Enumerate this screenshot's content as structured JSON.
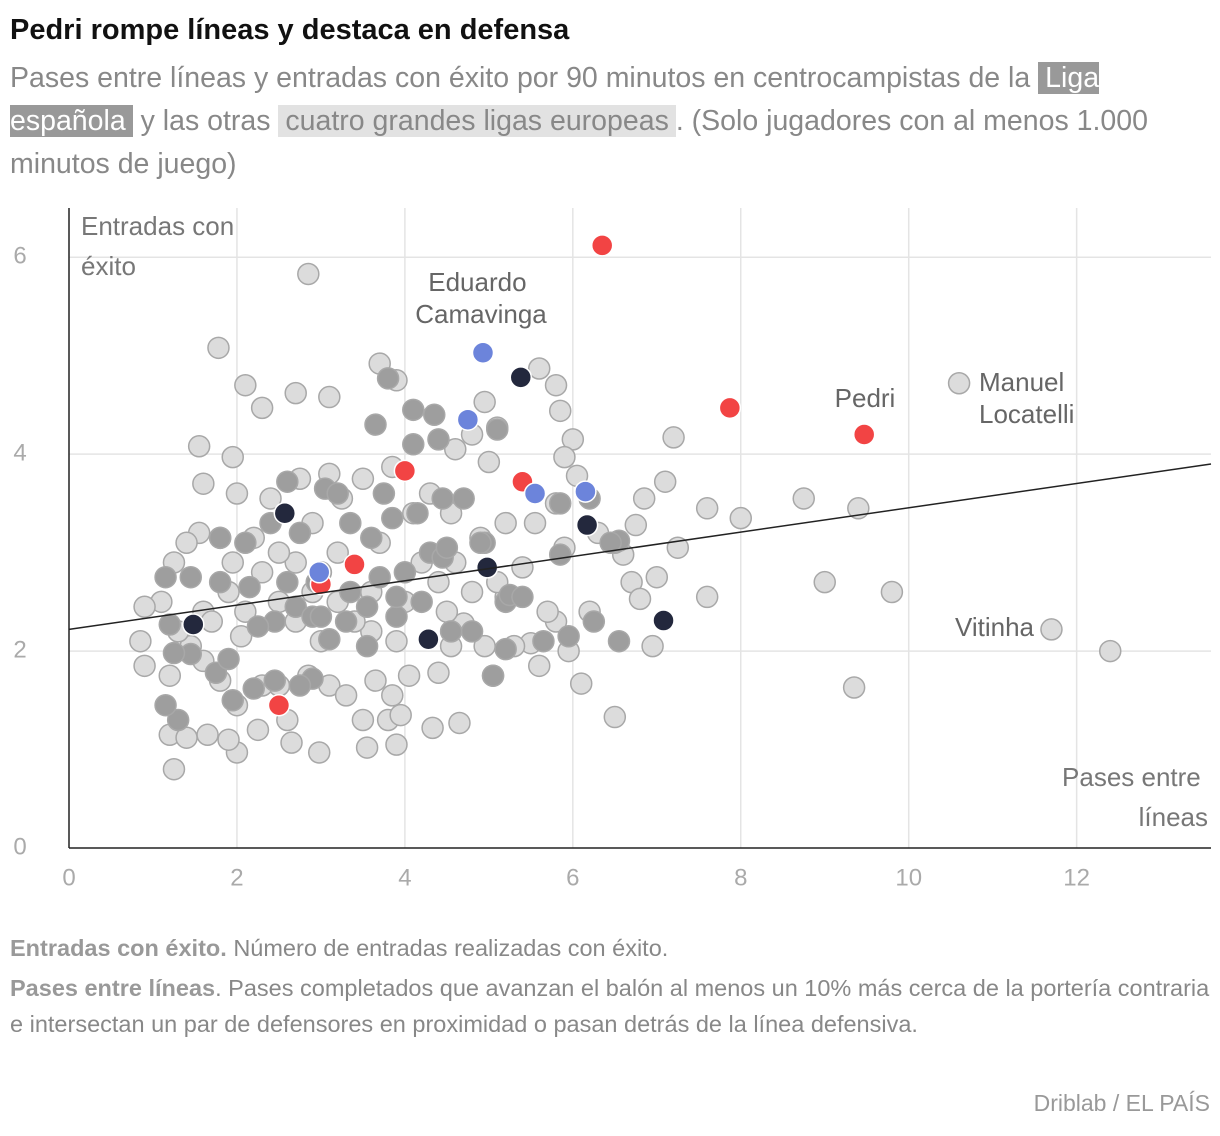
{
  "chart_data": {
    "type": "scatter",
    "title": "Pedri rompe líneas y destaca en defensa",
    "subtitle": [
      "Pases entre líneas y entradas con éxito por 90 minutos en centrocampistas de la ",
      " y las otras ",
      ". (Solo jugadores con al menos 1.000 minutos de juego)"
    ],
    "y_label": "Entradas con éxito",
    "x_label": "Pases entre líneas",
    "xlim": [
      0,
      13.6
    ],
    "ylim": [
      0,
      6.5
    ],
    "xticks": [
      0,
      2,
      4,
      6,
      8,
      10,
      12
    ],
    "yticks": [
      0,
      2,
      4,
      6
    ],
    "grid": true,
    "trend_line": {
      "x": [
        0,
        13.6
      ],
      "y": [
        2.22,
        3.9
      ],
      "color": "#222222"
    },
    "series": [
      {
        "name": "cuatro grandes ligas europeas",
        "color": "#dcdcdc",
        "x": [
          2.85,
          1.78,
          10.6,
          11.7,
          12.4,
          9.35,
          9.8,
          9.0,
          8.75,
          9.4,
          8.0,
          7.6,
          7.25,
          7.2,
          7.6,
          6.5,
          6.1,
          4.65,
          4.33,
          3.9,
          3.55,
          2.98,
          1.25,
          2.0,
          2.65,
          3.7,
          3.9,
          5.8,
          5.6,
          5.85,
          5.1,
          6.0,
          2.7,
          3.1,
          2.1,
          2.3,
          1.55,
          1.6,
          1.95,
          4.6,
          4.95,
          4.8,
          5.0,
          5.9,
          6.05,
          6.3,
          6.75,
          6.85,
          7.1,
          6.7,
          6.8,
          7.0,
          6.6,
          6.5,
          6.95,
          6.2,
          5.8,
          5.7,
          5.6,
          5.95,
          5.5,
          5.2,
          5.1,
          5.4,
          5.2,
          5.55,
          5.8,
          5.9,
          4.9,
          4.55,
          4.3,
          4.1,
          3.85,
          3.5,
          3.25,
          3.1,
          2.9,
          2.75,
          2.4,
          2.2,
          2.0,
          1.8,
          1.55,
          1.4,
          1.25,
          1.1,
          0.9,
          0.85,
          0.9,
          1.2,
          1.2,
          1.4,
          1.65,
          1.9,
          2.0,
          1.8,
          1.6,
          1.45,
          2.25,
          2.6,
          2.85,
          3.1,
          3.3,
          3.5,
          3.8,
          3.95,
          3.85,
          4.05,
          4.4,
          4.55,
          4.7,
          4.95,
          5.05,
          3.65,
          2.5,
          2.3,
          2.05,
          2.5,
          3.2,
          3.6,
          4.0,
          4.4,
          4.6,
          4.2,
          3.7,
          3.2,
          2.7,
          2.3,
          1.9,
          1.6,
          1.3,
          1.7,
          2.1,
          2.7,
          3.0,
          3.6,
          3.9,
          4.5,
          4.8,
          5.3,
          3.4,
          2.9,
          1.95,
          2.5
        ],
        "y": [
          5.83,
          5.08,
          4.72,
          2.22,
          2.0,
          1.63,
          2.6,
          2.7,
          3.55,
          3.45,
          3.35,
          3.45,
          3.05,
          4.17,
          2.55,
          1.33,
          1.67,
          1.27,
          1.22,
          1.05,
          1.02,
          0.97,
          0.8,
          0.97,
          1.07,
          4.92,
          4.75,
          4.7,
          4.87,
          4.44,
          4.27,
          4.15,
          4.62,
          4.58,
          4.7,
          4.47,
          4.08,
          3.7,
          3.97,
          4.05,
          4.53,
          4.2,
          3.92,
          3.97,
          3.78,
          3.2,
          3.28,
          3.55,
          3.72,
          2.7,
          2.53,
          2.75,
          2.98,
          3.1,
          2.05,
          2.4,
          2.3,
          2.4,
          1.85,
          2.0,
          2.08,
          2.55,
          2.7,
          2.85,
          3.3,
          3.3,
          3.5,
          3.05,
          3.15,
          3.4,
          3.6,
          3.4,
          3.87,
          3.75,
          3.55,
          3.8,
          3.3,
          3.75,
          3.55,
          3.15,
          3.6,
          3.15,
          3.2,
          3.1,
          2.9,
          2.5,
          2.45,
          2.1,
          1.85,
          1.75,
          1.15,
          1.12,
          1.15,
          1.1,
          1.45,
          1.7,
          1.9,
          2.05,
          1.2,
          1.3,
          1.75,
          1.65,
          1.55,
          1.3,
          1.3,
          1.35,
          1.55,
          1.75,
          1.78,
          2.05,
          2.28,
          2.05,
          1.75,
          1.7,
          1.65,
          1.65,
          2.15,
          2.5,
          2.5,
          2.6,
          2.5,
          2.7,
          2.9,
          2.9,
          3.1,
          3.0,
          2.9,
          2.8,
          2.6,
          2.4,
          2.2,
          2.3,
          2.4,
          2.3,
          2.1,
          2.2,
          2.1,
          2.4,
          2.6,
          2.05,
          2.3,
          2.6,
          2.9,
          3.0
        ]
      },
      {
        "name": "Liga española",
        "color": "#9e9e9e",
        "x": [
          3.8,
          4.1,
          4.4,
          4.35,
          4.1,
          5.1,
          3.65,
          3.05,
          3.35,
          3.6,
          3.75,
          4.15,
          4.7,
          4.95,
          4.3,
          5.2,
          5.85,
          6.55,
          6.55,
          6.25,
          5.95,
          5.65,
          6.45,
          6.2,
          5.85,
          5.05,
          5.2,
          4.8,
          4.55,
          3.9,
          3.55,
          3.3,
          3.1,
          2.9,
          2.75,
          2.45,
          2.2,
          1.95,
          1.75,
          1.45,
          1.3,
          1.15,
          1.25,
          1.2,
          1.15,
          1.45,
          1.8,
          2.15,
          2.6,
          2.95,
          3.35,
          3.7,
          3.9,
          4.2,
          4.45,
          2.45,
          2.7,
          2.9,
          2.25,
          1.9,
          2.4,
          2.1,
          1.8,
          2.75,
          3.2,
          3.85,
          4.45,
          4.5,
          4.0,
          4.9,
          5.25,
          5.4,
          3.55,
          3.0,
          2.6,
          3.0
        ],
        "y": [
          4.77,
          4.45,
          4.15,
          4.4,
          4.1,
          4.25,
          4.3,
          3.65,
          3.3,
          3.15,
          3.6,
          3.4,
          3.55,
          3.1,
          3.0,
          2.5,
          2.98,
          3.12,
          2.1,
          2.3,
          2.15,
          2.1,
          3.1,
          3.55,
          3.5,
          1.75,
          2.02,
          2.2,
          2.2,
          2.35,
          2.05,
          2.3,
          2.12,
          1.72,
          1.65,
          1.7,
          1.62,
          1.5,
          1.78,
          1.97,
          1.3,
          1.45,
          1.98,
          2.27,
          2.75,
          2.75,
          2.7,
          2.65,
          2.7,
          2.7,
          2.6,
          2.75,
          2.55,
          2.5,
          2.95,
          2.3,
          2.45,
          2.35,
          2.25,
          1.92,
          3.3,
          3.1,
          3.15,
          3.2,
          3.6,
          3.35,
          3.55,
          3.05,
          2.8,
          3.1,
          2.57,
          2.55,
          2.45,
          2.8,
          3.72,
          2.35
        ]
      },
      {
        "color": "#f24444",
        "x": [
          6.35,
          7.87,
          9.47,
          4.0,
          5.4,
          3.4,
          3.0,
          2.5
        ],
        "y": [
          6.12,
          4.47,
          4.2,
          3.83,
          3.72,
          2.88,
          2.68,
          1.45
        ]
      },
      {
        "color": "#6c84db",
        "x": [
          4.93,
          4.75,
          5.55,
          6.15,
          2.98
        ],
        "y": [
          5.03,
          4.35,
          3.6,
          3.62,
          2.8
        ]
      },
      {
        "color": "#23283d",
        "x": [
          5.38,
          2.57,
          6.17,
          4.98,
          1.48,
          4.28,
          7.08
        ],
        "y": [
          4.78,
          3.4,
          3.28,
          2.85,
          2.27,
          2.12,
          2.31
        ]
      }
    ],
    "annotations": [
      "Eduardo Camavinga",
      "Pedri",
      "Manuel Locatelli",
      "Vitinha"
    ],
    "notes": [
      {
        "term": "Entradas con éxito.",
        "text": "Número de entradas realizadas con éxito."
      },
      {
        "term": "Pases entre líneas",
        "text": ". Pases completados que avanzan el balón al menos un 10% más cerca de la portería contraria e intersectan un par de defensores en proximidad o pasan detrás de la línea defensiva."
      }
    ],
    "source": "Driblab / EL PAÍS"
  }
}
